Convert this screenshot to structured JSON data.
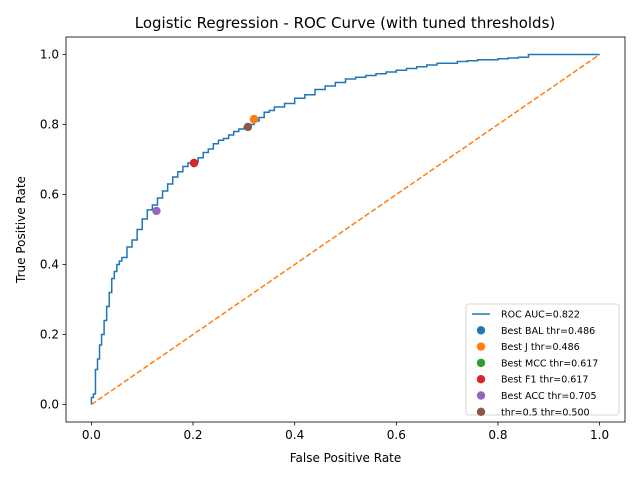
{
  "chart_data": {
    "type": "line",
    "title": "Logistic Regression - ROC Curve (with tuned thresholds)",
    "xlabel": "False Positive Rate",
    "ylabel": "True Positive Rate",
    "xlim": [
      -0.05,
      1.05
    ],
    "ylim": [
      -0.05,
      1.05
    ],
    "xticks": [
      "0.0",
      "0.2",
      "0.4",
      "0.6",
      "0.8",
      "1.0"
    ],
    "yticks": [
      "0.0",
      "0.2",
      "0.4",
      "0.6",
      "0.8",
      "1.0"
    ],
    "grid": false,
    "legend_position": "lower-right",
    "colors": {
      "roc": "#1f77b4",
      "diagonal": "#ff7f0e",
      "points": [
        "#1f77b4",
        "#ff7f0e",
        "#2ca02c",
        "#d62728",
        "#9467bd",
        "#8c564b"
      ]
    },
    "series": [
      {
        "name": "ROC AUC=0.822",
        "x": [
          0.0,
          0.0,
          0.004,
          0.008,
          0.012,
          0.016,
          0.02,
          0.025,
          0.03,
          0.035,
          0.04,
          0.045,
          0.05,
          0.055,
          0.06,
          0.07,
          0.08,
          0.09,
          0.1,
          0.11,
          0.12,
          0.13,
          0.14,
          0.15,
          0.16,
          0.17,
          0.18,
          0.19,
          0.2,
          0.21,
          0.22,
          0.23,
          0.24,
          0.25,
          0.26,
          0.27,
          0.28,
          0.29,
          0.3,
          0.31,
          0.32,
          0.33,
          0.34,
          0.35,
          0.36,
          0.38,
          0.4,
          0.42,
          0.44,
          0.46,
          0.48,
          0.5,
          0.52,
          0.54,
          0.56,
          0.58,
          0.6,
          0.62,
          0.64,
          0.66,
          0.68,
          0.7,
          0.72,
          0.74,
          0.76,
          0.78,
          0.8,
          0.82,
          0.84,
          0.86,
          0.88,
          0.9,
          0.92,
          0.94,
          0.96,
          0.98,
          1.0
        ],
        "y": [
          0.0,
          0.02,
          0.03,
          0.1,
          0.13,
          0.17,
          0.2,
          0.24,
          0.28,
          0.32,
          0.36,
          0.38,
          0.4,
          0.41,
          0.42,
          0.45,
          0.47,
          0.5,
          0.53,
          0.556,
          0.57,
          0.59,
          0.61,
          0.63,
          0.65,
          0.665,
          0.68,
          0.69,
          0.693,
          0.705,
          0.72,
          0.73,
          0.745,
          0.755,
          0.76,
          0.77,
          0.78,
          0.787,
          0.79,
          0.8,
          0.81,
          0.82,
          0.835,
          0.84,
          0.85,
          0.86,
          0.875,
          0.885,
          0.9,
          0.91,
          0.92,
          0.93,
          0.935,
          0.94,
          0.945,
          0.95,
          0.955,
          0.96,
          0.965,
          0.97,
          0.975,
          0.975,
          0.98,
          0.982,
          0.985,
          0.985,
          0.988,
          0.99,
          0.992,
          1.0,
          1.0,
          1.0,
          1.0,
          1.0,
          1.0,
          1.0,
          1.0
        ]
      },
      {
        "name": "",
        "x": [
          0.0,
          1.0
        ],
        "y": [
          0.0,
          1.0
        ],
        "style": "dashed"
      }
    ],
    "points": [
      {
        "name": "Best BAL thr=0.486",
        "x": 0.32,
        "y": 0.815
      },
      {
        "name": "Best J thr=0.486",
        "x": 0.32,
        "y": 0.815
      },
      {
        "name": "Best MCC thr=0.617",
        "x": 0.202,
        "y": 0.69
      },
      {
        "name": "Best F1 thr=0.617",
        "x": 0.202,
        "y": 0.69
      },
      {
        "name": "Best ACC thr=0.705",
        "x": 0.128,
        "y": 0.553
      },
      {
        "name": "thr=0.5 thr=0.500",
        "x": 0.308,
        "y": 0.793
      }
    ]
  }
}
